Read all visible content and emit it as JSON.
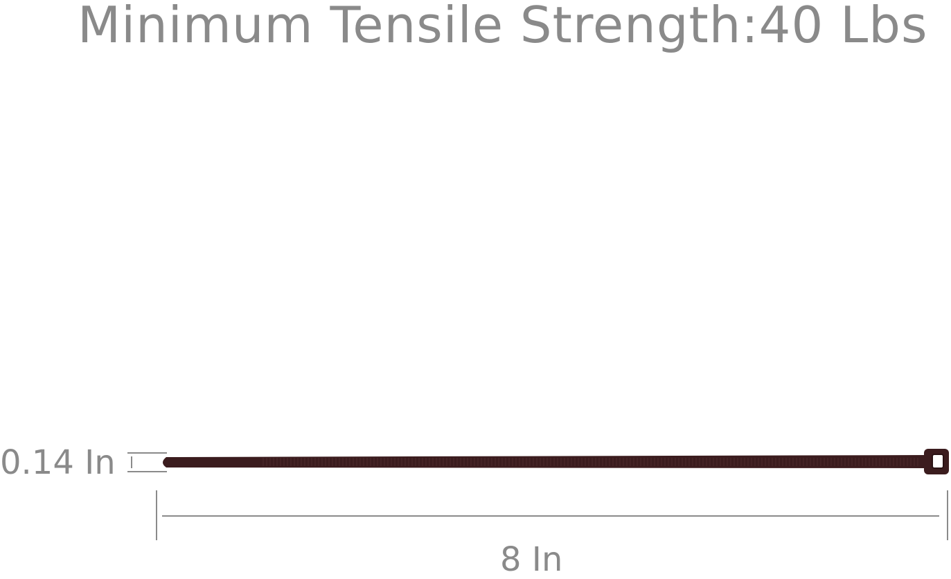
{
  "title": "Minimum Tensile Strength:40 Lbs",
  "dimensions": {
    "width_label": "0.14 In",
    "length_label": "8 In"
  },
  "colors": {
    "text": "#8a8a8a",
    "cable_tie": "#3b1c1e",
    "dimension_line": "#8a8a8a"
  }
}
